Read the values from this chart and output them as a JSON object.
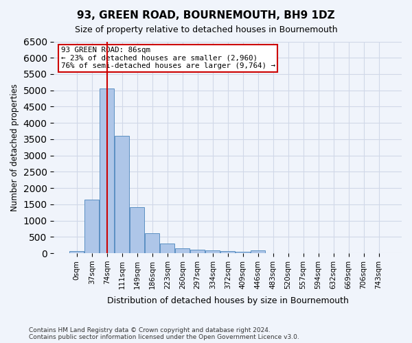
{
  "title": "93, GREEN ROAD, BOURNEMOUTH, BH9 1DZ",
  "subtitle": "Size of property relative to detached houses in Bournemouth",
  "xlabel": "Distribution of detached houses by size in Bournemouth",
  "ylabel": "Number of detached properties",
  "footnote1": "Contains HM Land Registry data © Crown copyright and database right 2024.",
  "footnote2": "Contains public sector information licensed under the Open Government Licence v3.0.",
  "bin_labels": [
    "0sqm",
    "37sqm",
    "74sqm",
    "111sqm",
    "149sqm",
    "186sqm",
    "223sqm",
    "260sqm",
    "297sqm",
    "334sqm",
    "372sqm",
    "409sqm",
    "446sqm",
    "483sqm",
    "520sqm",
    "557sqm",
    "594sqm",
    "632sqm",
    "669sqm",
    "706sqm",
    "743sqm"
  ],
  "bar_values": [
    70,
    1650,
    5060,
    3600,
    1420,
    620,
    300,
    150,
    110,
    80,
    60,
    50,
    80,
    0,
    0,
    0,
    0,
    0,
    0,
    0,
    0
  ],
  "bar_color": "#aec6e8",
  "bar_edge_color": "#5a8fc2",
  "vline_x": 2.0,
  "vline_color": "#cc0000",
  "annotation_text": "93 GREEN ROAD: 86sqm\n← 23% of detached houses are smaller (2,960)\n76% of semi-detached houses are larger (9,764) →",
  "annotation_box_color": "#ffffff",
  "annotation_box_edge_color": "#cc0000",
  "ylim": [
    0,
    6500
  ],
  "yticks": [
    0,
    500,
    1000,
    1500,
    2000,
    2500,
    3000,
    3500,
    4000,
    4500,
    5000,
    5500,
    6000,
    6500
  ],
  "grid_color": "#d0d8e8",
  "background_color": "#f0f4fb"
}
